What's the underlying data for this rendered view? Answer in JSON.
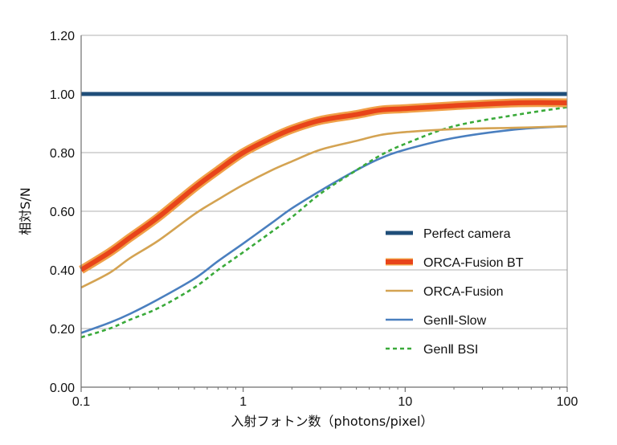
{
  "chart_data": {
    "type": "line",
    "title": "",
    "xlabel": "入射フォトン数（photons/pixel）",
    "ylabel": "相対S/N",
    "x_scale": "log",
    "xlim": [
      0.1,
      100
    ],
    "ylim": [
      0,
      1.2
    ],
    "x_ticks": [
      "0.1",
      "1",
      "10",
      "100"
    ],
    "y_ticks": [
      "0.00",
      "0.20",
      "0.40",
      "0.60",
      "0.80",
      "1.00",
      "1.20"
    ],
    "grid": "horizontal",
    "legend_position": "lower-right",
    "colors": {
      "perfect": "#1f4e79",
      "fusion_bt": "#e8441a",
      "fusion_bt_glow": "#f0a048",
      "fusion": "#d4a352",
      "gen2_slow": "#4a7fbf",
      "gen2_bsi": "#3aaa3a",
      "grid": "#b0b0b0"
    },
    "series": [
      {
        "name": "Perfect camera",
        "x": [
          0.1,
          0.2,
          0.5,
          1,
          2,
          5,
          10,
          20,
          50,
          100
        ],
        "y": [
          1.0,
          1.0,
          1.0,
          1.0,
          1.0,
          1.0,
          1.0,
          1.0,
          1.0,
          1.0
        ]
      },
      {
        "name": "ORCA-Fusion BT",
        "x": [
          0.1,
          0.15,
          0.2,
          0.3,
          0.5,
          0.7,
          1,
          1.5,
          2,
          3,
          5,
          7,
          10,
          20,
          50,
          100
        ],
        "y": [
          0.4,
          0.46,
          0.51,
          0.58,
          0.68,
          0.74,
          0.8,
          0.85,
          0.88,
          0.91,
          0.93,
          0.945,
          0.95,
          0.96,
          0.97,
          0.97
        ]
      },
      {
        "name": "ORCA-Fusion",
        "x": [
          0.1,
          0.15,
          0.2,
          0.3,
          0.5,
          0.7,
          1,
          1.5,
          2,
          3,
          5,
          7,
          10,
          20,
          50,
          100
        ],
        "y": [
          0.34,
          0.39,
          0.44,
          0.5,
          0.59,
          0.64,
          0.69,
          0.74,
          0.77,
          0.81,
          0.84,
          0.86,
          0.87,
          0.88,
          0.885,
          0.89
        ]
      },
      {
        "name": "GenⅡ-Slow",
        "x": [
          0.1,
          0.15,
          0.2,
          0.3,
          0.5,
          0.7,
          1,
          1.5,
          2,
          3,
          5,
          7,
          10,
          20,
          50,
          100
        ],
        "y": [
          0.185,
          0.22,
          0.25,
          0.3,
          0.37,
          0.43,
          0.49,
          0.56,
          0.61,
          0.67,
          0.74,
          0.78,
          0.81,
          0.85,
          0.88,
          0.89
        ]
      },
      {
        "name": "GenⅡ BSI",
        "x": [
          0.1,
          0.15,
          0.2,
          0.3,
          0.5,
          0.7,
          1,
          1.5,
          2,
          3,
          5,
          7,
          10,
          20,
          50,
          100
        ],
        "y": [
          0.17,
          0.2,
          0.23,
          0.27,
          0.34,
          0.4,
          0.46,
          0.53,
          0.58,
          0.66,
          0.74,
          0.79,
          0.83,
          0.89,
          0.93,
          0.955
        ]
      }
    ]
  }
}
